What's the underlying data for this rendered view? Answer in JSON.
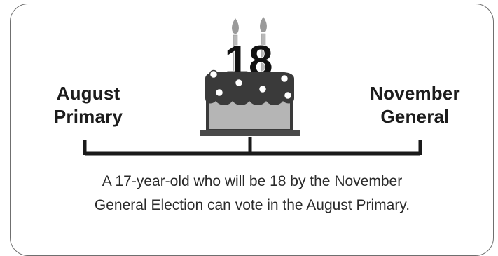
{
  "diagram": {
    "left_label": {
      "line1": "August",
      "line2": "Primary"
    },
    "right_label": {
      "line1": "November",
      "line2": "General"
    },
    "cake_number": "18",
    "caption": {
      "line1": "A 17-year-old who will be 18 by the November",
      "line2": "General Election can vote in the August Primary."
    },
    "colors": {
      "frame": "#6f6f6f",
      "text": "#1c1c1c",
      "cake_frosting": "#3a3a3a",
      "cake_body": "#b5b5b5",
      "cake_plate": "#4a4a4a",
      "candle": "#b8b8b8",
      "timeline": "#1a1a1a"
    },
    "icons": {
      "cake": "birthday-cake-icon",
      "candle": "candle-icon",
      "flame": "flame-icon"
    }
  }
}
